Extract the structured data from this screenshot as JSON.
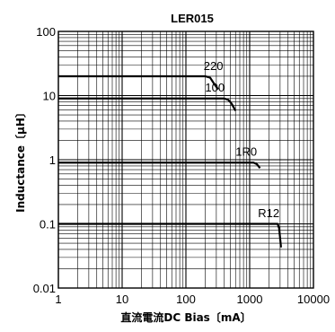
{
  "chart_data": {
    "type": "line",
    "title": "LER015",
    "xlabel": "直流電流DC Bias〔mA〕",
    "ylabel": "Inductance〔μH〕",
    "x_scale": "log",
    "y_scale": "log",
    "xlim": [
      1,
      10000
    ],
    "ylim": [
      0.01,
      100
    ],
    "grid": true,
    "x_ticks": [
      {
        "value": 1,
        "label": "1"
      },
      {
        "value": 10,
        "label": "10"
      },
      {
        "value": 100,
        "label": "100"
      },
      {
        "value": 1000,
        "label": "1000"
      },
      {
        "value": 10000,
        "label": "10000"
      }
    ],
    "y_ticks": [
      {
        "value": 0.01,
        "label": "0.01"
      },
      {
        "value": 0.1,
        "label": "0.1"
      },
      {
        "value": 1,
        "label": "1"
      },
      {
        "value": 10,
        "label": "10"
      },
      {
        "value": 100,
        "label": "100"
      }
    ],
    "series": [
      {
        "name": "220",
        "points": [
          [
            1,
            20
          ],
          [
            200,
            20
          ],
          [
            240,
            19
          ],
          [
            280,
            15
          ],
          [
            320,
            12.5
          ]
        ],
        "label_at": [
          190,
          25
        ]
      },
      {
        "name": "100",
        "points": [
          [
            1,
            9
          ],
          [
            400,
            9
          ],
          [
            460,
            8.6
          ],
          [
            520,
            7.5
          ],
          [
            600,
            5.8
          ]
        ],
        "label_at": [
          200,
          11.5
        ]
      },
      {
        "name": "1R0",
        "points": [
          [
            1,
            0.9
          ],
          [
            1150,
            0.9
          ],
          [
            1300,
            0.85
          ],
          [
            1450,
            0.74
          ]
        ],
        "label_at": [
          600,
          1.15
        ]
      },
      {
        "name": "R12",
        "points": [
          [
            1,
            0.1
          ],
          [
            2750,
            0.1
          ],
          [
            2900,
            0.085
          ],
          [
            3100,
            0.043
          ]
        ],
        "label_at": [
          1350,
          0.128
        ]
      }
    ]
  }
}
